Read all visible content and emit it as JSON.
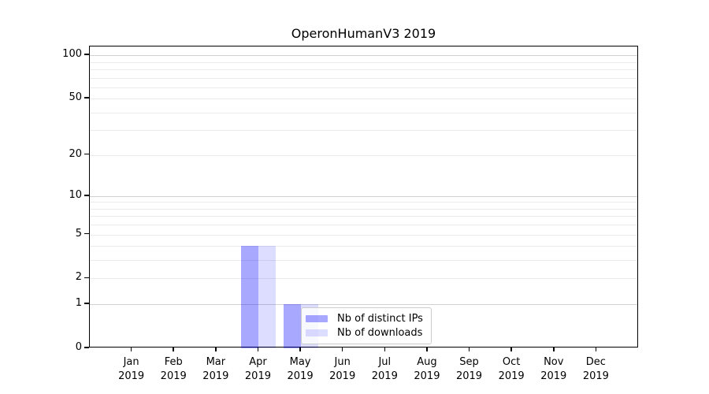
{
  "chart_data": {
    "type": "bar",
    "title": "OperonHumanV3 2019",
    "categories": [
      "Jan",
      "Feb",
      "Mar",
      "Apr",
      "May",
      "Jun",
      "Jul",
      "Aug",
      "Sep",
      "Oct",
      "Nov",
      "Dec"
    ],
    "category_year": "2019",
    "series": [
      {
        "name": "Nb of distinct IPs",
        "color": "rgba(0,0,255,0.34)",
        "values": [
          0,
          0,
          0,
          4,
          1,
          0,
          0,
          0,
          0,
          0,
          0,
          0
        ]
      },
      {
        "name": "Nb of downloads",
        "color": "rgba(0,0,255,0.135)",
        "values": [
          0,
          0,
          0,
          4,
          1,
          0,
          0,
          0,
          0,
          0,
          0,
          0
        ]
      }
    ],
    "xlabel": "",
    "ylabel": "",
    "yscale": "log1p",
    "ylim": [
      0,
      115
    ],
    "y_tick_labels": [
      "0",
      "1",
      "2",
      "5",
      "10",
      "20",
      "50",
      "100"
    ],
    "y_tick_values": [
      0,
      1,
      2,
      5,
      10,
      20,
      50,
      100
    ],
    "y_major_gridlines": [
      1,
      10,
      100
    ],
    "y_minor_gridlines": [
      2,
      3,
      4,
      5,
      6,
      7,
      8,
      9,
      20,
      30,
      40,
      50,
      60,
      70,
      80,
      90
    ],
    "grid": true,
    "legend_position": "inside lower-center"
  },
  "colors": {
    "bar_distinct_ips": "rgba(0,0,255,0.34)",
    "bar_downloads": "rgba(0,0,255,0.135)",
    "major_grid": "#d2d2d2",
    "minor_grid": "#ebebeb",
    "axis": "#000000",
    "legend_border": "#cccccc"
  }
}
